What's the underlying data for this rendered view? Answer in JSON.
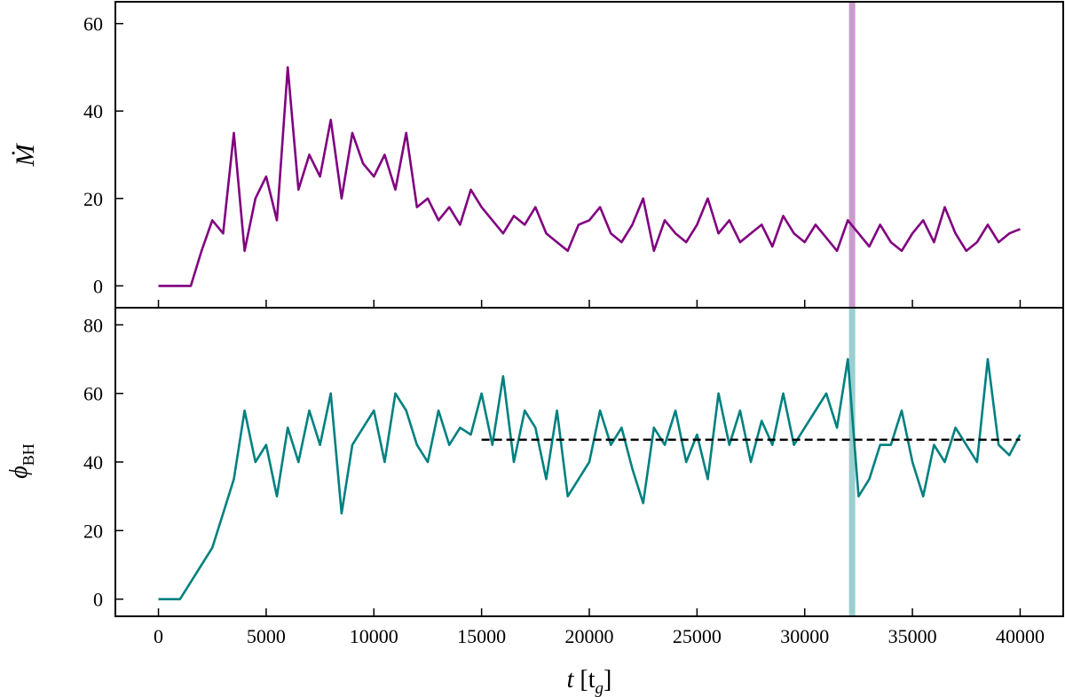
{
  "chart_data": [
    {
      "type": "line",
      "ylabel": "Ṁ",
      "xlim": [
        -2000,
        42000
      ],
      "ylim": [
        -5,
        65
      ],
      "yticks": [
        0,
        20,
        40,
        60
      ],
      "vspan": {
        "x": 32200,
        "color": "#c99bcb"
      },
      "x": [
        0,
        500,
        1000,
        1500,
        2000,
        2500,
        3000,
        3500,
        4000,
        4500,
        5000,
        5500,
        6000,
        6500,
        7000,
        7500,
        8000,
        8500,
        9000,
        9500,
        10000,
        10500,
        11000,
        11500,
        12000,
        12500,
        13000,
        13500,
        14000,
        14500,
        15000,
        15500,
        16000,
        16500,
        17000,
        17500,
        18000,
        18500,
        19000,
        19500,
        20000,
        20500,
        21000,
        21500,
        22000,
        22500,
        23000,
        23500,
        24000,
        24500,
        25000,
        25500,
        26000,
        26500,
        27000,
        27500,
        28000,
        28500,
        29000,
        29500,
        30000,
        30500,
        31000,
        31500,
        32000,
        32500,
        33000,
        33500,
        34000,
        34500,
        35000,
        35500,
        36000,
        36500,
        37000,
        37500,
        38000,
        38500,
        39000,
        39500,
        40000
      ],
      "series": [
        {
          "color": "#800080",
          "values": [
            0,
            0,
            0,
            0,
            8,
            15,
            12,
            35,
            8,
            20,
            25,
            15,
            50,
            22,
            30,
            25,
            38,
            20,
            35,
            28,
            25,
            30,
            22,
            35,
            18,
            20,
            15,
            18,
            14,
            22,
            18,
            15,
            12,
            16,
            14,
            18,
            12,
            10,
            8,
            14,
            15,
            18,
            12,
            10,
            14,
            20,
            8,
            15,
            12,
            10,
            14,
            20,
            12,
            15,
            10,
            12,
            14,
            9,
            16,
            12,
            10,
            14,
            11,
            8,
            15,
            12,
            9,
            14,
            10,
            8,
            12,
            15,
            10,
            18,
            12,
            8,
            10,
            14,
            10,
            12,
            13
          ]
        }
      ]
    },
    {
      "type": "line",
      "ylabel": "ϕ",
      "ylabel_sub": "BH",
      "xlabel": [
        "t",
        " [t",
        "g",
        "]"
      ],
      "xlim": [
        -2000,
        42000
      ],
      "ylim": [
        -5,
        85
      ],
      "yticks": [
        0,
        20,
        40,
        60,
        80
      ],
      "xticks": [
        0,
        5000,
        10000,
        15000,
        20000,
        25000,
        30000,
        35000,
        40000
      ],
      "vspan": {
        "x": 32200,
        "color": "#9bcfcf"
      },
      "hline": {
        "y": 46.5,
        "xmin": 15000,
        "xmax": 40000,
        "color": "#000000"
      },
      "x": [
        0,
        500,
        1000,
        1500,
        2000,
        2500,
        3000,
        3500,
        4000,
        4500,
        5000,
        5500,
        6000,
        6500,
        7000,
        7500,
        8000,
        8500,
        9000,
        9500,
        10000,
        10500,
        11000,
        11500,
        12000,
        12500,
        13000,
        13500,
        14000,
        14500,
        15000,
        15500,
        16000,
        16500,
        17000,
        17500,
        18000,
        18500,
        19000,
        19500,
        20000,
        20500,
        21000,
        21500,
        22000,
        22500,
        23000,
        23500,
        24000,
        24500,
        25000,
        25500,
        26000,
        26500,
        27000,
        27500,
        28000,
        28500,
        29000,
        29500,
        30000,
        30500,
        31000,
        31500,
        32000,
        32500,
        33000,
        33500,
        34000,
        34500,
        35000,
        35500,
        36000,
        36500,
        37000,
        37500,
        38000,
        38500,
        39000,
        39500,
        40000
      ],
      "series": [
        {
          "color": "#008080",
          "values": [
            0,
            0,
            0,
            5,
            10,
            15,
            25,
            35,
            55,
            40,
            45,
            30,
            50,
            40,
            55,
            45,
            60,
            25,
            45,
            50,
            55,
            40,
            60,
            55,
            45,
            40,
            55,
            45,
            50,
            48,
            60,
            45,
            65,
            40,
            55,
            50,
            35,
            55,
            30,
            35,
            40,
            55,
            45,
            50,
            38,
            28,
            50,
            45,
            55,
            40,
            48,
            35,
            60,
            45,
            55,
            40,
            52,
            45,
            60,
            45,
            50,
            55,
            60,
            50,
            70,
            30,
            35,
            45,
            45,
            55,
            40,
            30,
            45,
            40,
            50,
            45,
            40,
            70,
            45,
            42,
            48
          ]
        }
      ]
    }
  ]
}
